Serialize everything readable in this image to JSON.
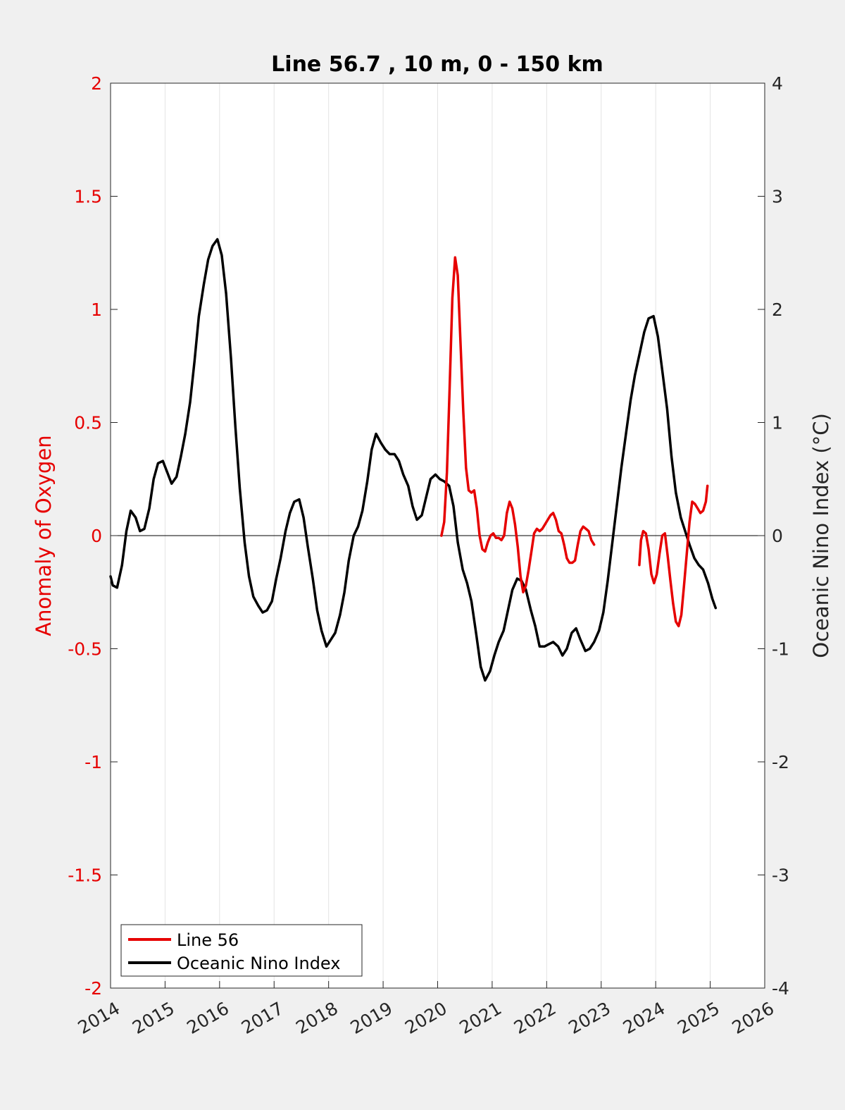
{
  "chart_data": {
    "type": "line",
    "title": "Line 56.7 , 10 m, 0 - 150 km",
    "ylabel_left": "Anomaly of Oxygen",
    "ylabel_right": "Oceanic Nino Index (°C)",
    "xlim": [
      2014,
      2026
    ],
    "ylim_left": [
      -2,
      2
    ],
    "ylim_right": [
      -4,
      4
    ],
    "x_ticks": [
      "2014",
      "2015",
      "2016",
      "2017",
      "2018",
      "2019",
      "2020",
      "2021",
      "2022",
      "2023",
      "2024",
      "2025",
      "2026"
    ],
    "y_ticks_left": [
      "2",
      "1.5",
      "1",
      "0.5",
      "0",
      "-0.5",
      "-1",
      "-1.5",
      "-2"
    ],
    "y_ticks_right": [
      "4",
      "3",
      "2",
      "1",
      "0",
      "-1",
      "-2",
      "-3",
      "-4"
    ],
    "grid": "vertical",
    "legend_position": "bottom-left",
    "colors": {
      "left_axis": "#e60000",
      "oni": "#000000",
      "line56": "#e60000",
      "background": "#f0f0f0"
    },
    "series": [
      {
        "name": "Line 56",
        "axis": "left",
        "color": "#e60000",
        "segments": [
          [
            [
              2020.07,
              0.0
            ],
            [
              2020.12,
              0.06
            ],
            [
              2020.17,
              0.28
            ],
            [
              2020.22,
              0.65
            ],
            [
              2020.27,
              1.05
            ],
            [
              2020.32,
              1.23
            ],
            [
              2020.37,
              1.15
            ],
            [
              2020.42,
              0.85
            ],
            [
              2020.47,
              0.55
            ],
            [
              2020.52,
              0.3
            ],
            [
              2020.57,
              0.2
            ],
            [
              2020.62,
              0.19
            ],
            [
              2020.67,
              0.2
            ],
            [
              2020.72,
              0.12
            ],
            [
              2020.77,
              0.0
            ],
            [
              2020.82,
              -0.06
            ],
            [
              2020.87,
              -0.07
            ],
            [
              2020.92,
              -0.03
            ],
            [
              2020.97,
              0.0
            ],
            [
              2021.02,
              0.01
            ],
            [
              2021.07,
              -0.01
            ],
            [
              2021.12,
              -0.01
            ],
            [
              2021.17,
              -0.02
            ],
            [
              2021.22,
              0.0
            ],
            [
              2021.27,
              0.1
            ],
            [
              2021.32,
              0.15
            ],
            [
              2021.37,
              0.12
            ],
            [
              2021.42,
              0.05
            ],
            [
              2021.47,
              -0.05
            ],
            [
              2021.52,
              -0.18
            ],
            [
              2021.57,
              -0.25
            ],
            [
              2021.62,
              -0.22
            ],
            [
              2021.67,
              -0.15
            ],
            [
              2021.72,
              -0.07
            ],
            [
              2021.77,
              0.01
            ],
            [
              2021.82,
              0.03
            ],
            [
              2021.87,
              0.02
            ],
            [
              2021.92,
              0.03
            ],
            [
              2021.97,
              0.05
            ],
            [
              2022.02,
              0.07
            ],
            [
              2022.07,
              0.09
            ],
            [
              2022.12,
              0.1
            ],
            [
              2022.17,
              0.07
            ],
            [
              2022.22,
              0.02
            ],
            [
              2022.27,
              0.01
            ],
            [
              2022.32,
              -0.04
            ],
            [
              2022.37,
              -0.1
            ],
            [
              2022.42,
              -0.12
            ],
            [
              2022.47,
              -0.12
            ],
            [
              2022.52,
              -0.11
            ],
            [
              2022.57,
              -0.04
            ],
            [
              2022.62,
              0.02
            ],
            [
              2022.67,
              0.04
            ],
            [
              2022.72,
              0.03
            ],
            [
              2022.77,
              0.02
            ],
            [
              2022.82,
              -0.02
            ],
            [
              2022.87,
              -0.04
            ]
          ],
          [
            [
              2023.7,
              -0.13
            ],
            [
              2023.73,
              -0.02
            ],
            [
              2023.77,
              0.02
            ],
            [
              2023.82,
              0.01
            ],
            [
              2023.87,
              -0.06
            ],
            [
              2023.92,
              -0.17
            ],
            [
              2023.97,
              -0.21
            ],
            [
              2024.02,
              -0.17
            ],
            [
              2024.07,
              -0.08
            ],
            [
              2024.12,
              0.0
            ],
            [
              2024.17,
              0.01
            ],
            [
              2024.22,
              -0.09
            ],
            [
              2024.27,
              -0.2
            ],
            [
              2024.32,
              -0.3
            ],
            [
              2024.37,
              -0.38
            ],
            [
              2024.42,
              -0.4
            ],
            [
              2024.47,
              -0.35
            ],
            [
              2024.52,
              -0.22
            ],
            [
              2024.57,
              -0.08
            ],
            [
              2024.62,
              0.06
            ],
            [
              2024.67,
              0.15
            ],
            [
              2024.72,
              0.14
            ],
            [
              2024.77,
              0.12
            ],
            [
              2024.82,
              0.1
            ],
            [
              2024.87,
              0.11
            ],
            [
              2024.92,
              0.15
            ],
            [
              2024.95,
              0.22
            ]
          ]
        ]
      },
      {
        "name": "Oceanic Nino Index",
        "axis": "right",
        "color": "#000000",
        "segments": [
          [
            [
              2014.0,
              -0.36
            ],
            [
              2014.04,
              -0.44
            ],
            [
              2014.12,
              -0.46
            ],
            [
              2014.21,
              -0.26
            ],
            [
              2014.29,
              0.04
            ],
            [
              2014.37,
              0.22
            ],
            [
              2014.46,
              0.16
            ],
            [
              2014.54,
              0.04
            ],
            [
              2014.62,
              0.06
            ],
            [
              2014.71,
              0.24
            ],
            [
              2014.79,
              0.5
            ],
            [
              2014.87,
              0.64
            ],
            [
              2014.96,
              0.66
            ],
            [
              2015.04,
              0.56
            ],
            [
              2015.12,
              0.46
            ],
            [
              2015.21,
              0.52
            ],
            [
              2015.29,
              0.7
            ],
            [
              2015.37,
              0.9
            ],
            [
              2015.46,
              1.18
            ],
            [
              2015.54,
              1.54
            ],
            [
              2015.62,
              1.94
            ],
            [
              2015.71,
              2.22
            ],
            [
              2015.79,
              2.44
            ],
            [
              2015.87,
              2.56
            ],
            [
              2015.96,
              2.62
            ],
            [
              2016.04,
              2.48
            ],
            [
              2016.12,
              2.14
            ],
            [
              2016.21,
              1.56
            ],
            [
              2016.29,
              0.96
            ],
            [
              2016.37,
              0.42
            ],
            [
              2016.46,
              -0.06
            ],
            [
              2016.54,
              -0.36
            ],
            [
              2016.62,
              -0.54
            ],
            [
              2016.71,
              -0.62
            ],
            [
              2016.79,
              -0.68
            ],
            [
              2016.87,
              -0.66
            ],
            [
              2016.96,
              -0.58
            ],
            [
              2017.04,
              -0.38
            ],
            [
              2017.12,
              -0.2
            ],
            [
              2017.21,
              0.04
            ],
            [
              2017.29,
              0.2
            ],
            [
              2017.37,
              0.3
            ],
            [
              2017.46,
              0.32
            ],
            [
              2017.54,
              0.16
            ],
            [
              2017.62,
              -0.1
            ],
            [
              2017.71,
              -0.38
            ],
            [
              2017.79,
              -0.66
            ],
            [
              2017.87,
              -0.84
            ],
            [
              2017.96,
              -0.98
            ],
            [
              2018.04,
              -0.92
            ],
            [
              2018.12,
              -0.86
            ],
            [
              2018.21,
              -0.7
            ],
            [
              2018.29,
              -0.5
            ],
            [
              2018.37,
              -0.22
            ],
            [
              2018.46,
              0.0
            ],
            [
              2018.54,
              0.08
            ],
            [
              2018.62,
              0.22
            ],
            [
              2018.71,
              0.48
            ],
            [
              2018.79,
              0.76
            ],
            [
              2018.87,
              0.9
            ],
            [
              2018.96,
              0.82
            ],
            [
              2019.04,
              0.76
            ],
            [
              2019.12,
              0.72
            ],
            [
              2019.21,
              0.72
            ],
            [
              2019.29,
              0.66
            ],
            [
              2019.37,
              0.54
            ],
            [
              2019.46,
              0.44
            ],
            [
              2019.54,
              0.26
            ],
            [
              2019.62,
              0.14
            ],
            [
              2019.71,
              0.18
            ],
            [
              2019.79,
              0.34
            ],
            [
              2019.87,
              0.5
            ],
            [
              2019.96,
              0.54
            ],
            [
              2020.04,
              0.5
            ],
            [
              2020.12,
              0.48
            ],
            [
              2020.21,
              0.44
            ],
            [
              2020.29,
              0.26
            ],
            [
              2020.37,
              -0.06
            ],
            [
              2020.46,
              -0.3
            ],
            [
              2020.54,
              -0.42
            ],
            [
              2020.62,
              -0.58
            ],
            [
              2020.71,
              -0.88
            ],
            [
              2020.79,
              -1.16
            ],
            [
              2020.87,
              -1.28
            ],
            [
              2020.96,
              -1.2
            ],
            [
              2021.04,
              -1.06
            ],
            [
              2021.12,
              -0.94
            ],
            [
              2021.21,
              -0.84
            ],
            [
              2021.29,
              -0.66
            ],
            [
              2021.37,
              -0.48
            ],
            [
              2021.46,
              -0.38
            ],
            [
              2021.54,
              -0.4
            ],
            [
              2021.62,
              -0.48
            ],
            [
              2021.71,
              -0.66
            ],
            [
              2021.79,
              -0.8
            ],
            [
              2021.87,
              -0.98
            ],
            [
              2021.96,
              -0.98
            ],
            [
              2022.04,
              -0.96
            ],
            [
              2022.12,
              -0.94
            ],
            [
              2022.21,
              -0.98
            ],
            [
              2022.29,
              -1.06
            ],
            [
              2022.37,
              -1.0
            ],
            [
              2022.46,
              -0.86
            ],
            [
              2022.54,
              -0.82
            ],
            [
              2022.62,
              -0.92
            ],
            [
              2022.71,
              -1.02
            ],
            [
              2022.79,
              -1.0
            ],
            [
              2022.87,
              -0.94
            ],
            [
              2022.96,
              -0.84
            ],
            [
              2023.04,
              -0.68
            ],
            [
              2023.12,
              -0.4
            ],
            [
              2023.21,
              -0.04
            ],
            [
              2023.29,
              0.28
            ],
            [
              2023.37,
              0.6
            ],
            [
              2023.46,
              0.92
            ],
            [
              2023.54,
              1.2
            ],
            [
              2023.62,
              1.42
            ],
            [
              2023.71,
              1.62
            ],
            [
              2023.79,
              1.8
            ],
            [
              2023.87,
              1.92
            ],
            [
              2023.96,
              1.94
            ],
            [
              2024.04,
              1.76
            ],
            [
              2024.12,
              1.46
            ],
            [
              2024.21,
              1.12
            ],
            [
              2024.29,
              0.7
            ],
            [
              2024.37,
              0.38
            ],
            [
              2024.46,
              0.16
            ],
            [
              2024.54,
              0.04
            ],
            [
              2024.62,
              -0.08
            ],
            [
              2024.71,
              -0.2
            ],
            [
              2024.79,
              -0.26
            ],
            [
              2024.87,
              -0.3
            ],
            [
              2024.96,
              -0.42
            ],
            [
              2025.04,
              -0.56
            ],
            [
              2025.1,
              -0.64
            ]
          ]
        ]
      }
    ]
  }
}
